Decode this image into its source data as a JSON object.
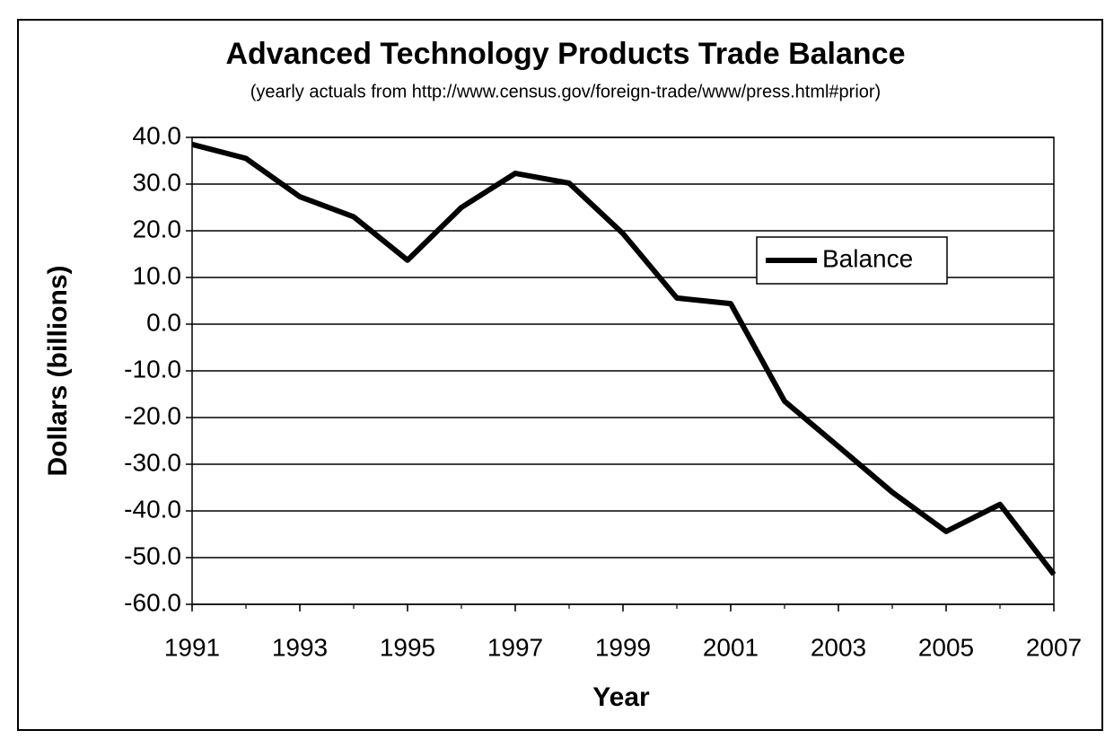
{
  "chart_data": {
    "type": "line",
    "title": "Advanced Technology Products Trade Balance",
    "subtitle": "(yearly actuals from http://www.census.gov/foreign-trade/www/press.html#prior)",
    "x_label": "Year",
    "y_label": "Dollars (billions)",
    "x": [
      1991,
      1992,
      1993,
      1994,
      1995,
      1996,
      1997,
      1998,
      1999,
      2000,
      2001,
      2002,
      2003,
      2004,
      2005,
      2006,
      2007
    ],
    "series": [
      {
        "name": "Balance",
        "color": "#000000",
        "values": [
          38.5,
          35.5,
          27.3,
          23,
          13.7,
          25,
          32.3,
          30.2,
          19.4,
          5.6,
          4.4,
          -16.5,
          -26.2,
          -36,
          -44.4,
          -38.6,
          -53.6
        ]
      }
    ],
    "xlim": [
      1991,
      2007
    ],
    "xticks": [
      1991,
      1993,
      1995,
      1997,
      1999,
      2001,
      2003,
      2005,
      2007
    ],
    "ylim": [
      -60,
      40
    ],
    "yticks": [
      {
        "value": -60,
        "label": "-60.0"
      },
      {
        "value": -50,
        "label": "-50.0"
      },
      {
        "value": -40,
        "label": "-40.0"
      },
      {
        "value": -30,
        "label": "-30.0"
      },
      {
        "value": -20,
        "label": "-20.0"
      },
      {
        "value": -10,
        "label": "-10.0"
      },
      {
        "value": 0,
        "label": "0.0"
      },
      {
        "value": 10,
        "label": "10.0"
      },
      {
        "value": 20,
        "label": "20.0"
      },
      {
        "value": 30,
        "label": "30.0"
      },
      {
        "value": 40,
        "label": "40.0"
      }
    ],
    "grid": true,
    "legend_position": "right"
  }
}
